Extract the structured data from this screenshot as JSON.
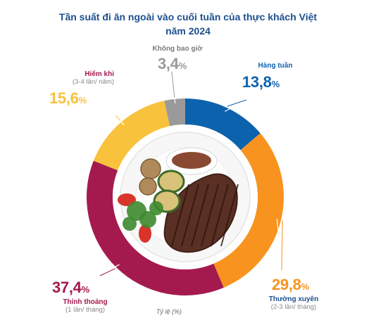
{
  "title": {
    "line1": "Tần suất đi ăn ngoài vào cuối tuần của thực khách Việt",
    "line2": "năm 2024"
  },
  "footnote": "Tỷ lệ (%)",
  "chart_data": {
    "type": "pie",
    "title": "Tần suất đi ăn ngoài vào cuối tuần của thực khách Việt năm 2024",
    "unit": "%",
    "slices": [
      {
        "name": "Hàng tuần",
        "sub": "",
        "value": 13.8,
        "value_text": "13,8",
        "color": "#0d62ad"
      },
      {
        "name": "Thường xuyên",
        "sub": "(2-3 lần/ tháng)",
        "value": 29.8,
        "value_text": "29,8",
        "color": "#f7931e"
      },
      {
        "name": "Thỉnh thoảng",
        "sub": "(1 lần/ tháng)",
        "value": 37.4,
        "value_text": "37,4",
        "color": "#a41a4f"
      },
      {
        "name": "Hiếm khi",
        "sub": "(3-4 lần/ năm)",
        "value": 15.6,
        "value_text": "15,6",
        "color": "#f9c23c"
      },
      {
        "name": "Không bao giờ",
        "sub": "",
        "value": 3.4,
        "value_text": "3,4",
        "color": "#9a9a9a"
      }
    ]
  }
}
